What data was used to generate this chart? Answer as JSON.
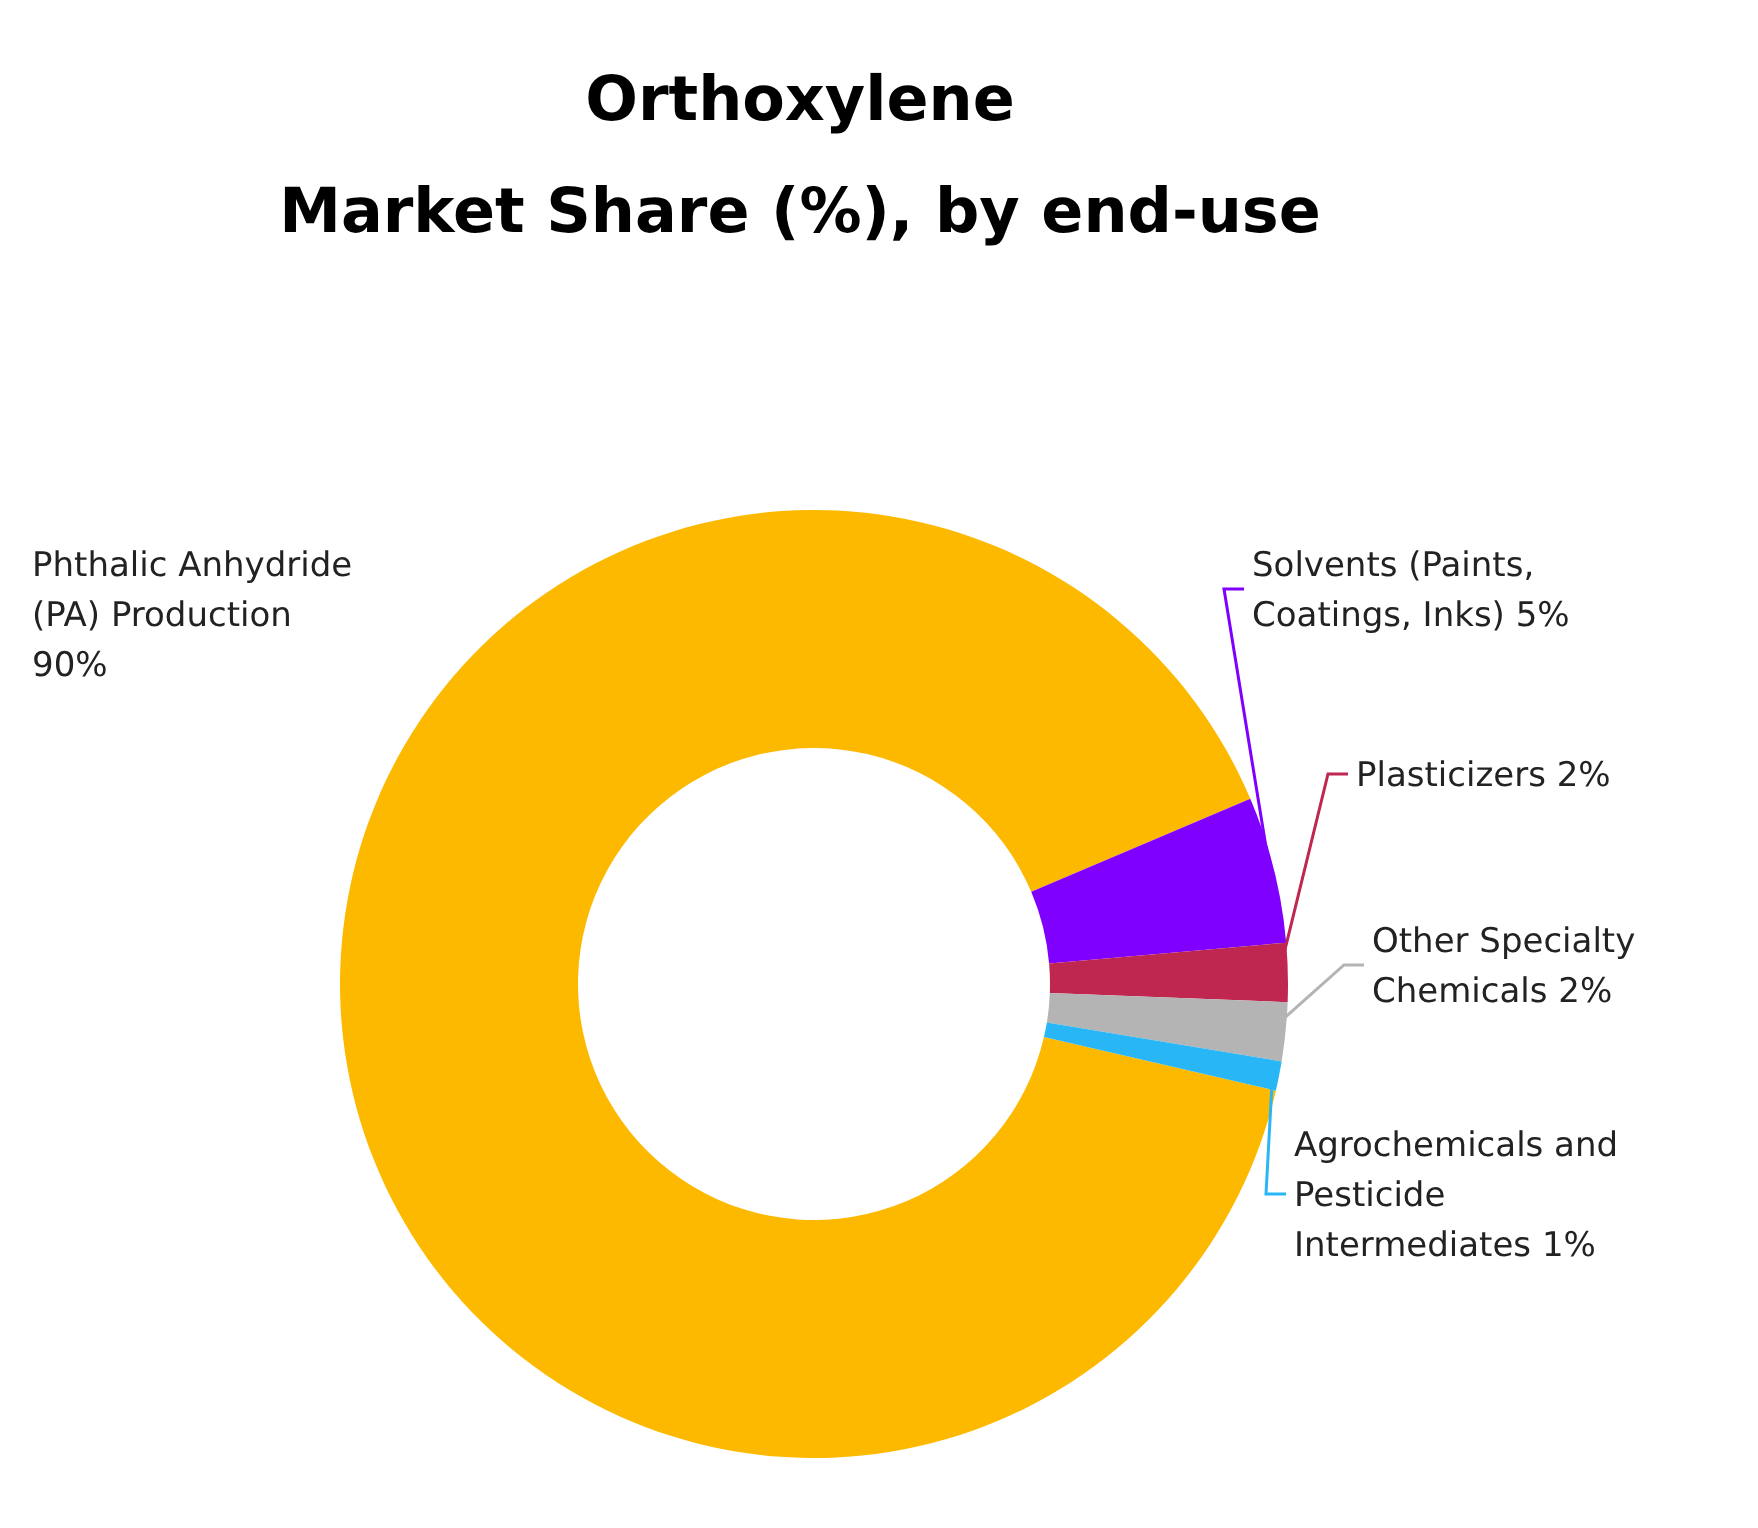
{
  "chart_data": {
    "type": "donut",
    "title": "Orthoxylene",
    "subtitle": "Market Share (%), by end-use",
    "categories": [
      "Phthalic Anhydride (PA) Production",
      "Solvents (Paints, Coatings, Inks)",
      "Plasticizers",
      "Other Specialty Chemicals",
      "Agrochemicals and Pesticide Intermediates"
    ],
    "values": [
      90,
      5,
      2,
      2,
      1
    ],
    "value_labels": [
      "90%",
      "5%",
      "2%",
      "2%",
      "1%"
    ],
    "colors": [
      "#fdb900",
      "#7f00ff",
      "#bf2650",
      "#b4b4b4",
      "#29b6f6"
    ]
  }
}
